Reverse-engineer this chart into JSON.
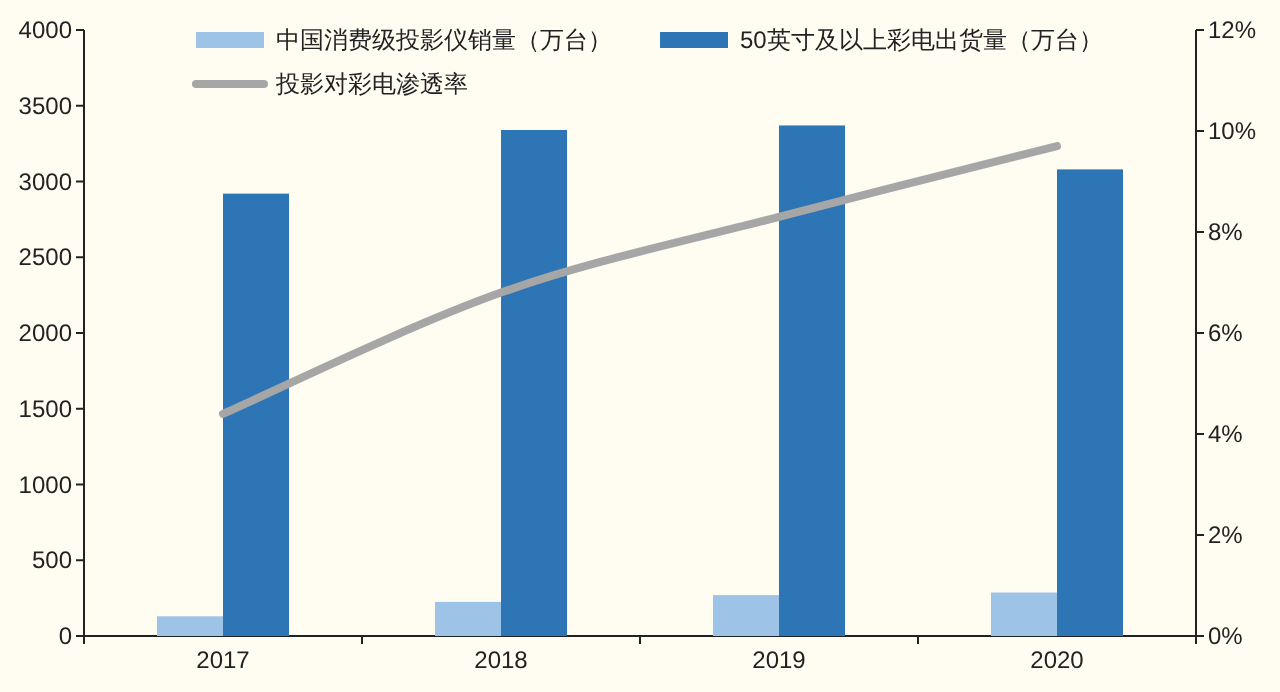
{
  "chart_data": {
    "type": "bar",
    "categories": [
      "2017",
      "2018",
      "2019",
      "2020"
    ],
    "series": [
      {
        "name": "中国消费级投影仪销量（万台）",
        "color": "#9dc3e6",
        "values": [
          130,
          225,
          270,
          287
        ]
      },
      {
        "name": "50英寸及以上彩电出货量（万台）",
        "color": "#2e75b6",
        "values": [
          2920,
          3340,
          3370,
          3080
        ]
      },
      {
        "name": "投影对彩电渗透率",
        "type": "line",
        "axis": "y2",
        "color": "#a6a6a6",
        "values": [
          4.4,
          6.8,
          8.3,
          9.7
        ]
      }
    ],
    "ylim": [
      0,
      4000
    ],
    "yticks": [
      0,
      500,
      1000,
      1500,
      2000,
      2500,
      3000,
      3500,
      4000
    ],
    "y2lim": [
      0,
      12
    ],
    "y2ticks": [
      {
        "value": 0,
        "label": "0%"
      },
      {
        "value": 2,
        "label": "2%"
      },
      {
        "value": 4,
        "label": "4%"
      },
      {
        "value": 6,
        "label": "6%"
      },
      {
        "value": 8,
        "label": "8%"
      },
      {
        "value": 10,
        "label": "10%"
      },
      {
        "value": 12,
        "label": "12%"
      }
    ],
    "grid": false,
    "legend": "top"
  }
}
